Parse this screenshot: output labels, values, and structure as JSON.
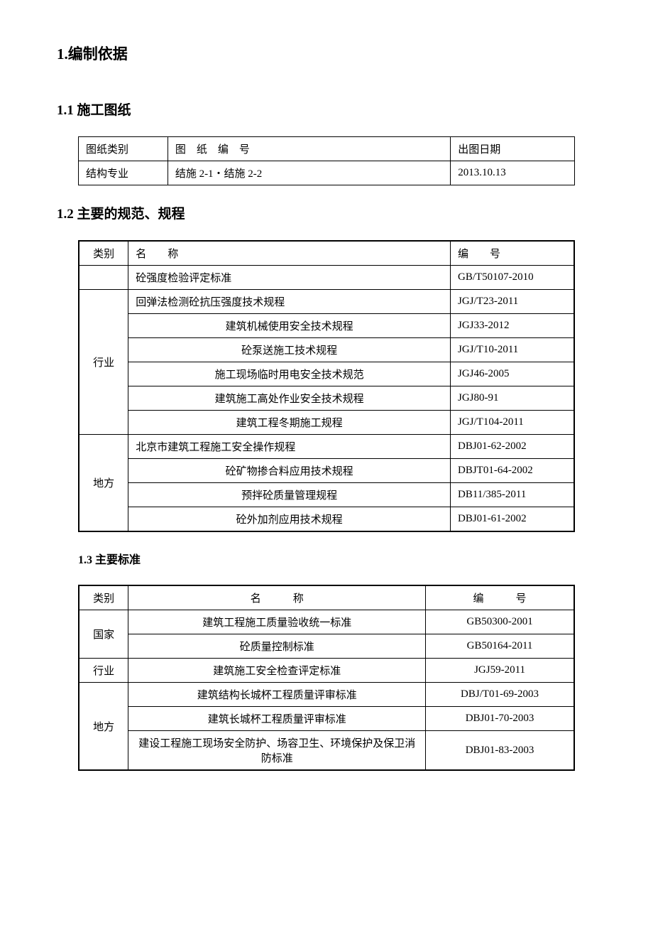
{
  "heading_1": "1.编制依据",
  "section_1_1": {
    "title": "1.1 施工图纸",
    "table": {
      "headers": [
        "图纸类别",
        "图　纸　编　号",
        "出图日期"
      ],
      "rows": [
        [
          "结构专业",
          "结施 2-1・结施 2-2",
          "2013.10.13"
        ]
      ]
    }
  },
  "section_1_2": {
    "title": "1.2 主要的规范、规程",
    "headers": [
      "类别",
      "名　　称",
      "编　　号"
    ],
    "groups": [
      {
        "category": "",
        "rows": [
          [
            "砼强度检验评定标准",
            "GB/T50107-2010"
          ]
        ]
      },
      {
        "category": "行业",
        "rows": [
          [
            "回弹法检测砼抗压强度技术规程",
            "JGJ/T23-2011"
          ],
          [
            "建筑机械使用安全技术规程",
            "JGJ33-2012"
          ],
          [
            "砼泵送施工技术规程",
            "JGJ/T10-2011"
          ],
          [
            "施工现场临时用电安全技术规范",
            "JGJ46-2005"
          ],
          [
            "建筑施工高处作业安全技术规程",
            "JGJ80-91"
          ],
          [
            "建筑工程冬期施工规程",
            "JGJ/T104-2011"
          ]
        ]
      },
      {
        "category": "地方",
        "rows": [
          [
            "北京市建筑工程施工安全操作规程",
            "DBJ01-62-2002"
          ],
          [
            "砼矿物掺合料应用技术规程",
            "DBJT01-64-2002"
          ],
          [
            "预拌砼质量管理规程",
            "DB11/385-2011"
          ],
          [
            "砼外加剂应用技术规程",
            "DBJ01-61-2002"
          ]
        ]
      }
    ]
  },
  "section_1_3": {
    "title": "1.3 主要标准",
    "headers": [
      "类别",
      "名　　　称",
      "编　　　号"
    ],
    "groups": [
      {
        "category": "国家",
        "rows": [
          [
            "建筑工程施工质量验收统一标准",
            "GB50300-2001"
          ],
          [
            "砼质量控制标准",
            "GB50164-2011"
          ]
        ]
      },
      {
        "category": "行业",
        "rows": [
          [
            "建筑施工安全检查评定标准",
            "JGJ59-2011"
          ]
        ]
      },
      {
        "category": "地方",
        "rows": [
          [
            "建筑结构长城杯工程质量评审标准",
            "DBJ/T01-69-2003"
          ],
          [
            "建筑长城杯工程质量评审标准",
            "DBJ01-70-2003"
          ],
          [
            "建设工程施工现场安全防护、场容卫生、环境保护及保卫消防标准",
            "DBJ01-83-2003"
          ]
        ]
      }
    ]
  }
}
